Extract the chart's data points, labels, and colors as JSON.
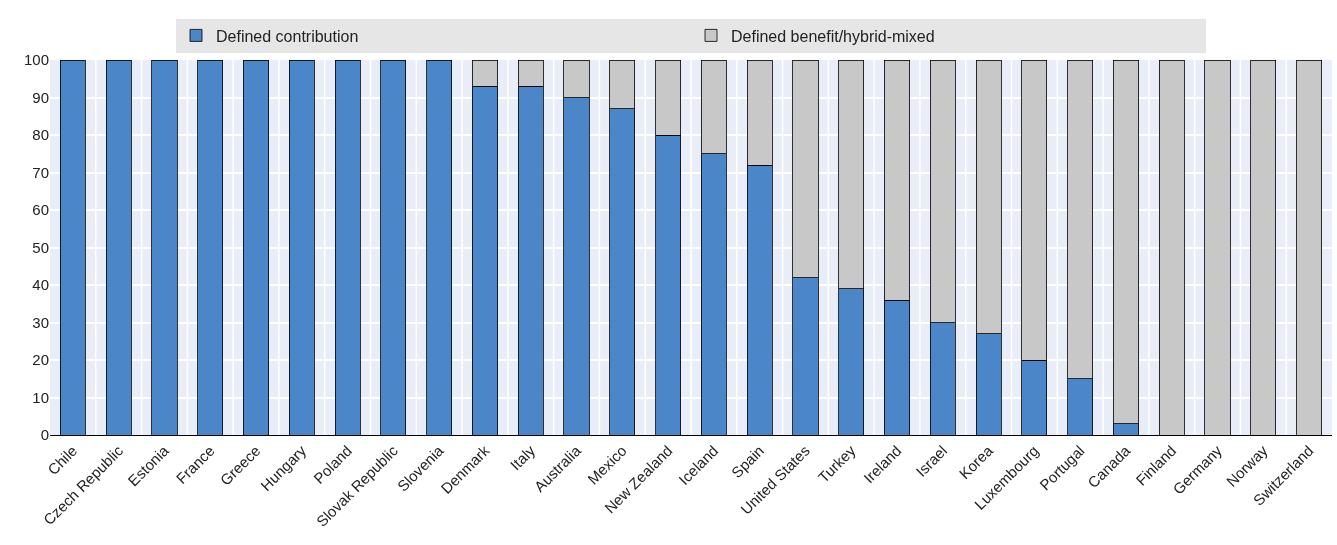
{
  "chart_data": {
    "type": "bar",
    "stacked": true,
    "categories": [
      "Chile",
      "Czech Republic",
      "Estonia",
      "France",
      "Greece",
      "Hungary",
      "Poland",
      "Slovak Republic",
      "Slovenia",
      "Denmark",
      "Italy",
      "Australia",
      "Mexico",
      "New Zealand",
      "Iceland",
      "Spain",
      "United States",
      "Turkey",
      "Ireland",
      "Israel",
      "Korea",
      "Luxembourg",
      "Portugal",
      "Canada",
      "Finland",
      "Germany",
      "Norway",
      "Switzerland"
    ],
    "series": [
      {
        "name": "Defined contribution",
        "color": "#4a86c8",
        "values": [
          100,
          100,
          100,
          100,
          100,
          100,
          100,
          100,
          100,
          93,
          93,
          90,
          87,
          80,
          75,
          72,
          42,
          39,
          36,
          30,
          27,
          20,
          15,
          3,
          null,
          null,
          null,
          null
        ]
      },
      {
        "name": "Defined benefit/hybrid-mixed",
        "color": "#c8c8c8",
        "values": [
          null,
          null,
          null,
          null,
          null,
          null,
          null,
          null,
          null,
          7,
          7,
          10,
          13,
          20,
          25,
          28,
          58,
          61,
          64,
          70,
          73,
          80,
          85,
          97,
          100,
          100,
          100,
          100
        ]
      }
    ],
    "ylim": [
      0,
      100
    ],
    "yticks": [
      0,
      10,
      20,
      30,
      40,
      50,
      60,
      70,
      80,
      90,
      100
    ],
    "grid": "y",
    "legend": "top"
  }
}
